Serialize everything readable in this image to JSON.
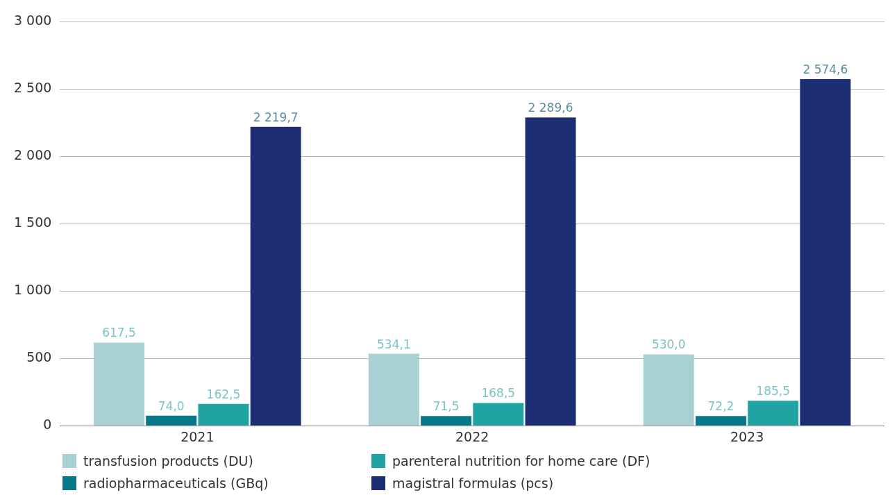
{
  "chart_data": {
    "type": "bar",
    "categories": [
      "2021",
      "2022",
      "2023"
    ],
    "series": [
      {
        "name": "transfusion products (DU)",
        "color": "#a9d0d2",
        "values": [
          617.5,
          534.1,
          530.0
        ],
        "value_labels": [
          "617,5",
          "534,1",
          "530,0"
        ]
      },
      {
        "name": "radiopharmaceuticals (GBq)",
        "color": "#07788a",
        "values": [
          74.0,
          71.5,
          72.2
        ],
        "value_labels": [
          "74,0",
          "71,5",
          "72,2"
        ]
      },
      {
        "name": "parenteral nutrition for home care (DF)",
        "color": "#1fa3a3",
        "values": [
          162.5,
          168.5,
          185.5
        ],
        "value_labels": [
          "162,5",
          "168,5",
          "185,5"
        ]
      },
      {
        "name": "magistral formulas (pcs)",
        "color": "#1d2d74",
        "values": [
          2219.7,
          2289.6,
          2574.6
        ],
        "value_labels": [
          "2 219,7",
          "2 289,6",
          "2 574,6"
        ]
      }
    ],
    "ylim": [
      0,
      3000
    ],
    "yticks": [
      0,
      500,
      {
        "value": 1000,
        "label": "1 000"
      },
      {
        "value": 1500,
        "label": "1 500"
      },
      {
        "value": 2000,
        "label": "2 000"
      },
      {
        "value": 2500,
        "label": "2 500"
      },
      {
        "value": 3000,
        "label": "3 000"
      }
    ],
    "grid": "y",
    "legend": "bottom"
  }
}
